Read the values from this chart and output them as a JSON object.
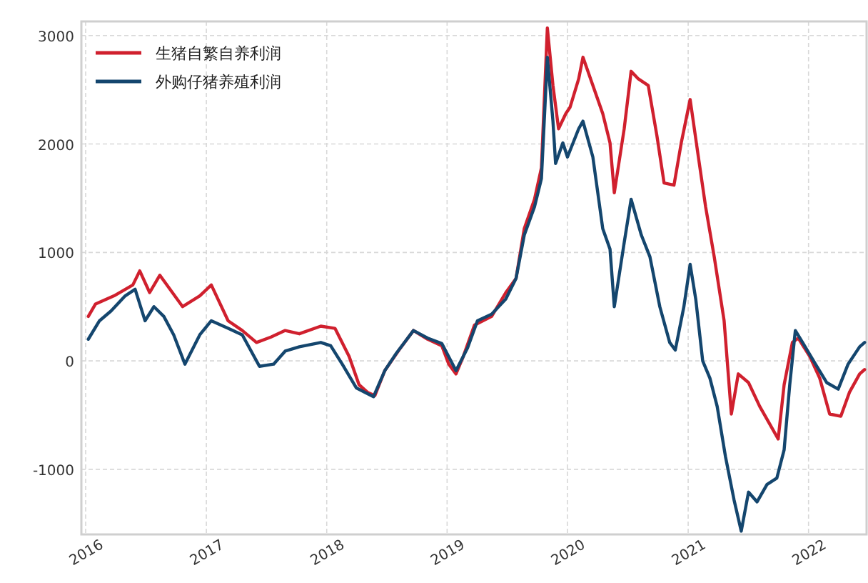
{
  "chart_data": {
    "type": "line",
    "xlim": [
      "2015-12-19",
      "2022-06-26"
    ],
    "ylim": [
      -1600,
      3130
    ],
    "xticks": [
      "2016",
      "2017",
      "2018",
      "2019",
      "2020",
      "2021",
      "2022"
    ],
    "yticks": [
      -1000,
      0,
      1000,
      2000,
      3000
    ],
    "grid": true,
    "legend": "top left",
    "line_style": "solid",
    "series": [
      {
        "name": "生猪自繁自养利润",
        "color": "#d0202e",
        "x": [
          "2016-01-09",
          "2016-01-31",
          "2016-03-27",
          "2016-05-23",
          "2016-06-13",
          "2016-07-13",
          "2016-08-13",
          "2016-10-21",
          "2016-12-12",
          "2017-01-16",
          "2017-03-08",
          "2017-04-20",
          "2017-06-02",
          "2017-07-16",
          "2017-08-28",
          "2017-10-10",
          "2017-12-14",
          "2018-01-26",
          "2018-03-10",
          "2018-04-09",
          "2018-05-05",
          "2018-05-27",
          "2018-06-26",
          "2018-08-08",
          "2018-09-21",
          "2018-11-03",
          "2018-12-16",
          "2019-01-06",
          "2019-01-28",
          "2019-02-19",
          "2019-03-25",
          "2019-05-16",
          "2019-06-28",
          "2019-07-29",
          "2019-08-23",
          "2019-09-23",
          "2019-10-14",
          "2019-11-01",
          "2019-11-18",
          "2019-12-05",
          "2019-12-27",
          "2020-01-09",
          "2020-02-04",
          "2020-02-17",
          "2020-03-18",
          "2020-04-17",
          "2020-05-09",
          "2020-05-22",
          "2020-06-21",
          "2020-07-12",
          "2020-08-03",
          "2020-09-02",
          "2020-09-28",
          "2020-10-20",
          "2020-11-19",
          "2020-12-11",
          "2021-01-07",
          "2021-02-01",
          "2021-02-23",
          "2021-03-21",
          "2021-04-20",
          "2021-05-12",
          "2021-06-02",
          "2021-07-03",
          "2021-08-06",
          "2021-10-01",
          "2021-10-19",
          "2021-11-13",
          "2021-12-01",
          "2022-01-05",
          "2022-02-04",
          "2022-03-06",
          "2022-04-09",
          "2022-05-05",
          "2022-06-05",
          "2022-06-20"
        ],
        "values": [
          410,
          525,
          600,
          700,
          830,
          630,
          790,
          500,
          600,
          700,
          370,
          280,
          170,
          220,
          280,
          250,
          320,
          300,
          40,
          -220,
          -290,
          -320,
          -90,
          100,
          280,
          200,
          140,
          -30,
          -120,
          40,
          330,
          410,
          630,
          760,
          1220,
          1490,
          1780,
          3070,
          2540,
          2140,
          2280,
          2340,
          2600,
          2800,
          2540,
          2280,
          2010,
          1550,
          2140,
          2670,
          2600,
          2540,
          2080,
          1640,
          1620,
          2010,
          2410,
          1880,
          1420,
          960,
          370,
          -490,
          -120,
          -200,
          -420,
          -720,
          -220,
          170,
          210,
          40,
          -160,
          -490,
          -510,
          -290,
          -120,
          -80
        ]
      },
      {
        "name": "外购仔猪养殖利润",
        "color": "#14466e",
        "x": [
          "2016-01-09",
          "2016-02-12",
          "2016-03-18",
          "2016-04-30",
          "2016-05-30",
          "2016-06-29",
          "2016-07-26",
          "2016-08-25",
          "2016-09-24",
          "2016-10-28",
          "2016-12-12",
          "2017-01-16",
          "2017-03-08",
          "2017-04-20",
          "2017-06-11",
          "2017-07-24",
          "2017-08-28",
          "2017-10-10",
          "2017-12-14",
          "2018-01-13",
          "2018-02-17",
          "2018-04-01",
          "2018-05-23",
          "2018-06-26",
          "2018-07-31",
          "2018-09-21",
          "2018-11-03",
          "2018-12-16",
          "2019-01-28",
          "2019-03-04",
          "2019-04-03",
          "2019-05-16",
          "2019-06-28",
          "2019-07-29",
          "2019-08-23",
          "2019-09-23",
          "2019-10-14",
          "2019-11-01",
          "2019-11-18",
          "2019-11-26",
          "2019-12-18",
          "2020-01-01",
          "2020-02-04",
          "2020-02-17",
          "2020-03-18",
          "2020-04-17",
          "2020-05-09",
          "2020-05-22",
          "2020-06-21",
          "2020-07-12",
          "2020-08-12",
          "2020-09-07",
          "2020-10-07",
          "2020-11-06",
          "2020-11-23",
          "2020-12-19",
          "2021-01-07",
          "2021-01-24",
          "2021-02-14",
          "2021-03-08",
          "2021-03-30",
          "2021-04-24",
          "2021-05-20",
          "2021-06-11",
          "2021-07-03",
          "2021-07-29",
          "2021-08-28",
          "2021-09-27",
          "2021-10-19",
          "2021-11-05",
          "2021-11-22",
          "2021-12-14",
          "2022-01-22",
          "2022-02-25",
          "2022-04-01",
          "2022-05-01",
          "2022-06-05",
          "2022-06-20"
        ],
        "values": [
          200,
          370,
          460,
          600,
          660,
          370,
          500,
          410,
          240,
          -30,
          240,
          370,
          300,
          240,
          -50,
          -30,
          90,
          130,
          170,
          140,
          -30,
          -250,
          -330,
          -90,
          70,
          280,
          210,
          160,
          -90,
          120,
          370,
          430,
          570,
          760,
          1160,
          1420,
          1680,
          2800,
          2210,
          1820,
          2010,
          1880,
          2140,
          2210,
          1880,
          1220,
          1030,
          500,
          1090,
          1490,
          1160,
          960,
          500,
          170,
          100,
          500,
          890,
          570,
          0,
          -160,
          -420,
          -880,
          -1280,
          -1570,
          -1210,
          -1300,
          -1140,
          -1080,
          -820,
          -220,
          280,
          170,
          -30,
          -200,
          -260,
          -30,
          130,
          170
        ]
      }
    ]
  }
}
